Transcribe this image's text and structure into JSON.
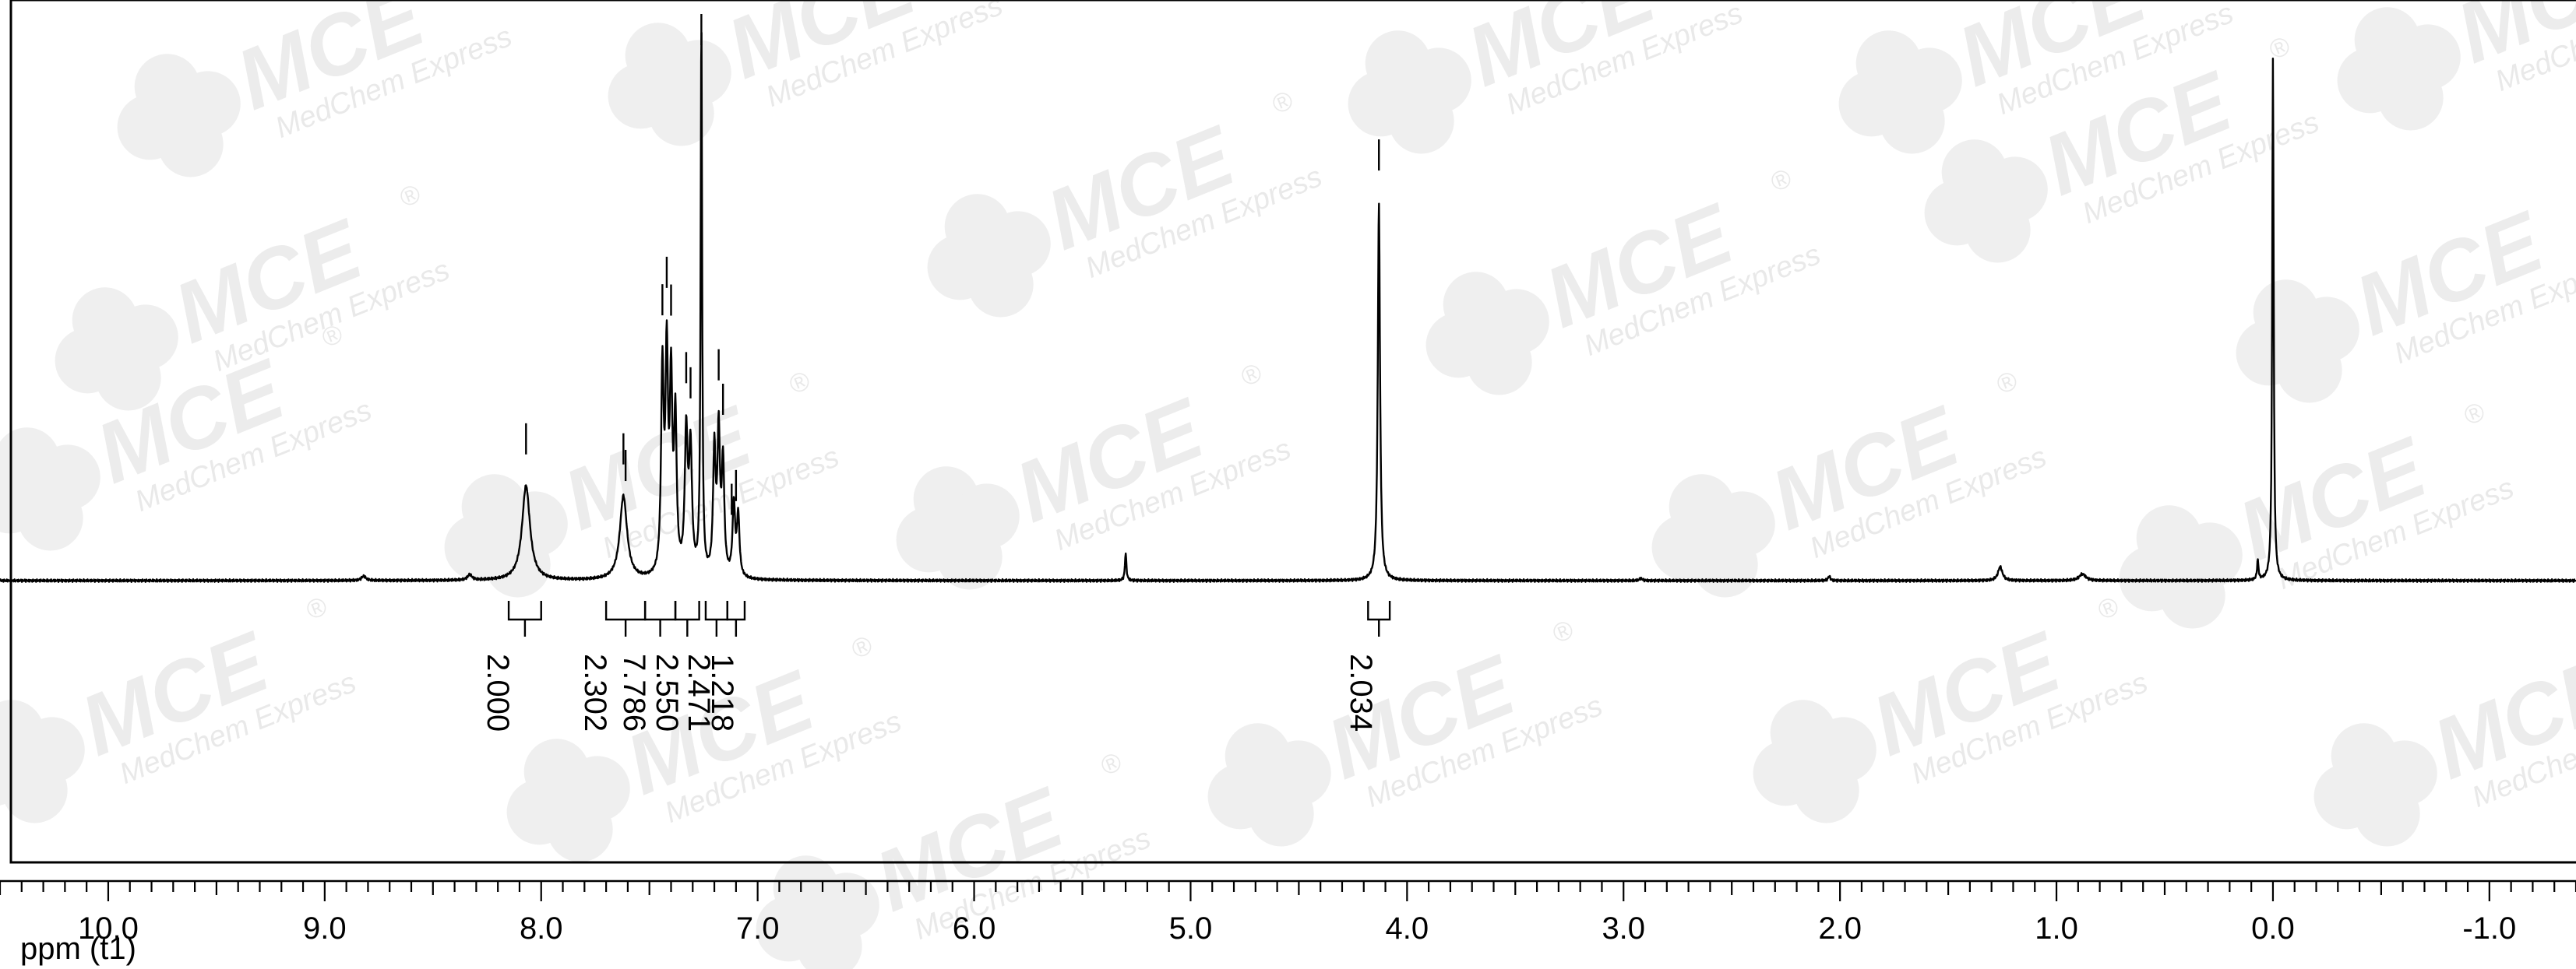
{
  "chart_data": {
    "type": "line",
    "title": "",
    "xlabel": "ppm (t1)",
    "ylabel": "",
    "x_reversed": true,
    "xlim": [
      10.5,
      -1.4
    ],
    "ylim": [
      -0.02,
      1.08
    ],
    "x_ticks": [
      10.0,
      9.0,
      8.0,
      7.0,
      6.0,
      5.0,
      4.0,
      3.0,
      2.0,
      1.0,
      0.0,
      -1.0
    ],
    "x_tick_labels": [
      "10.0",
      "9.0",
      "8.0",
      "7.0",
      "6.0",
      "5.0",
      "4.0",
      "3.0",
      "2.0",
      "1.0",
      "0.0",
      "-1.0"
    ],
    "grid": false,
    "legend": "none",
    "baseline": 0.0,
    "peaks": [
      {
        "ppm": 8.82,
        "height": 0.008,
        "width": 0.012
      },
      {
        "ppm": 8.33,
        "height": 0.01,
        "width": 0.012
      },
      {
        "ppm": 8.07,
        "height": 0.17,
        "width": 0.022
      },
      {
        "ppm": 7.62,
        "height": 0.15,
        "width": 0.02
      },
      {
        "ppm": 7.44,
        "height": 0.36,
        "width": 0.007
      },
      {
        "ppm": 7.42,
        "height": 0.38,
        "width": 0.007
      },
      {
        "ppm": 7.4,
        "height": 0.33,
        "width": 0.007
      },
      {
        "ppm": 7.38,
        "height": 0.27,
        "width": 0.007
      },
      {
        "ppm": 7.33,
        "height": 0.25,
        "width": 0.008
      },
      {
        "ppm": 7.31,
        "height": 0.22,
        "width": 0.008
      },
      {
        "ppm": 7.26,
        "height": 1.0,
        "width": 0.004
      },
      {
        "ppm": 7.2,
        "height": 0.22,
        "width": 0.007
      },
      {
        "ppm": 7.18,
        "height": 0.25,
        "width": 0.007
      },
      {
        "ppm": 7.16,
        "height": 0.2,
        "width": 0.007
      },
      {
        "ppm": 7.11,
        "height": 0.13,
        "width": 0.007
      },
      {
        "ppm": 7.09,
        "height": 0.11,
        "width": 0.007
      },
      {
        "ppm": 5.3,
        "height": 0.05,
        "width": 0.004
      },
      {
        "ppm": 4.13,
        "height": 0.68,
        "width": 0.006
      },
      {
        "ppm": 2.92,
        "height": 0.004,
        "width": 0.008
      },
      {
        "ppm": 2.05,
        "height": 0.008,
        "width": 0.006
      },
      {
        "ppm": 1.26,
        "height": 0.025,
        "width": 0.012
      },
      {
        "ppm": 0.88,
        "height": 0.012,
        "width": 0.018
      },
      {
        "ppm": 0.07,
        "height": 0.035,
        "width": 0.004
      },
      {
        "ppm": 0.0,
        "height": 0.94,
        "width": 0.004
      }
    ],
    "peak_markers_ppm": [
      8.07,
      7.62,
      7.61,
      7.44,
      7.42,
      7.4,
      7.33,
      7.31,
      7.26,
      7.18,
      7.16,
      7.12,
      7.1,
      4.13
    ],
    "integrals": [
      {
        "from": 8.15,
        "to": 8.0,
        "value": "2.000"
      },
      {
        "from": 7.7,
        "to": 7.52,
        "value": "2.302"
      },
      {
        "from": 7.52,
        "to": 7.38,
        "value": "7.786"
      },
      {
        "from": 7.38,
        "to": 7.27,
        "value": "2.550"
      },
      {
        "from": 7.24,
        "to": 7.14,
        "value": "2.471"
      },
      {
        "from": 7.14,
        "to": 7.06,
        "value": "1.218"
      },
      {
        "from": 4.18,
        "to": 4.08,
        "value": "2.034"
      }
    ]
  },
  "watermark": {
    "logo_text": "MCE",
    "brand_text": "MedChem Express",
    "registered_mark": "®"
  },
  "colors": {
    "line": "#000000",
    "frame": "#000000",
    "watermark": "#e9e9e9",
    "background": "#ffffff"
  }
}
